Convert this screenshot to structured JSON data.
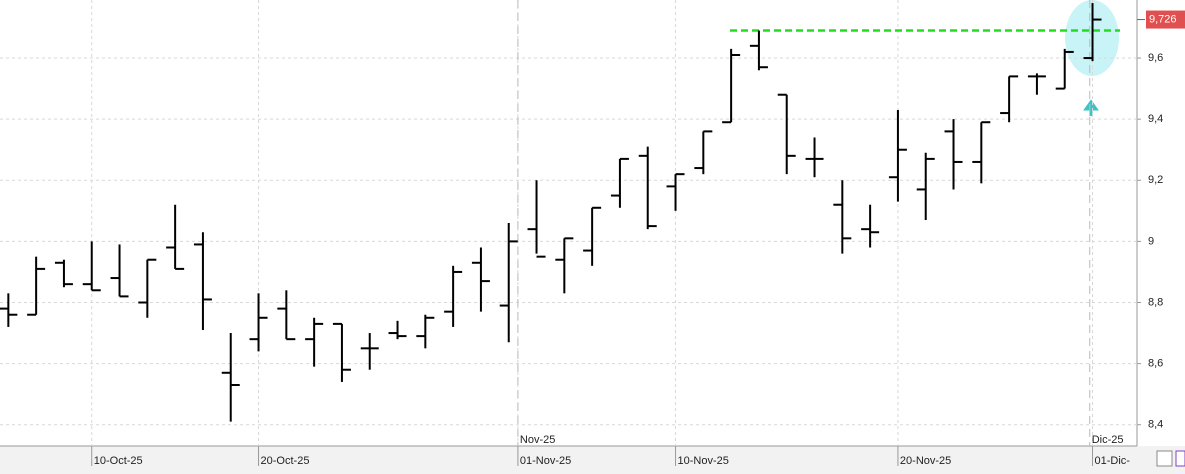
{
  "chart_data": {
    "type": "ohlc",
    "series": [
      {
        "color": "#000000",
        "open": [
          8.78,
          8.76,
          8.93,
          8.86,
          8.88,
          8.8,
          8.98,
          8.99,
          8.57,
          8.68,
          8.78,
          8.68,
          8.73,
          8.65,
          8.7,
          8.69,
          8.77,
          8.93,
          8.79,
          9.04,
          8.94,
          8.97,
          9.15,
          9.28,
          9.18,
          9.24,
          9.39,
          9.64,
          9.48,
          9.27,
          9.12,
          9.04,
          9.21,
          9.17,
          9.36,
          9.26,
          9.42,
          9.54,
          9.5,
          9.6
        ],
        "high": [
          8.83,
          8.95,
          8.94,
          9.0,
          8.99,
          8.94,
          9.12,
          9.03,
          8.7,
          8.83,
          8.84,
          8.75,
          8.73,
          8.7,
          8.74,
          8.76,
          8.92,
          8.98,
          9.06,
          9.2,
          9.01,
          9.11,
          9.27,
          9.31,
          9.22,
          9.36,
          9.63,
          9.69,
          9.48,
          9.34,
          9.2,
          9.12,
          9.43,
          9.29,
          9.4,
          9.39,
          9.54,
          9.55,
          9.63,
          9.78
        ],
        "low": [
          8.72,
          8.76,
          8.85,
          8.84,
          8.82,
          8.75,
          8.91,
          8.71,
          8.41,
          8.64,
          8.68,
          8.59,
          8.54,
          8.58,
          8.68,
          8.65,
          8.72,
          8.77,
          8.67,
          8.96,
          8.83,
          8.92,
          9.11,
          9.04,
          9.1,
          9.22,
          9.39,
          9.56,
          9.22,
          9.21,
          8.96,
          8.98,
          9.13,
          9.07,
          9.17,
          9.19,
          9.39,
          9.48,
          9.5,
          9.59
        ],
        "close": [
          8.76,
          8.91,
          8.86,
          8.84,
          8.82,
          8.94,
          8.91,
          8.81,
          8.53,
          8.75,
          8.68,
          8.73,
          8.58,
          8.65,
          8.69,
          8.75,
          8.9,
          8.87,
          9.0,
          8.95,
          9.01,
          9.11,
          9.27,
          9.05,
          9.22,
          9.36,
          9.61,
          9.57,
          9.28,
          9.27,
          9.01,
          9.03,
          9.3,
          9.27,
          9.26,
          9.39,
          9.54,
          9.54,
          9.62,
          9.726
        ]
      }
    ],
    "xlim": [
      -0.3,
      40.6
    ],
    "xticks": [
      {
        "value": 3,
        "label": "10-Oct-25"
      },
      {
        "value": 9,
        "label": "20-Oct-25"
      },
      {
        "value": 18.33,
        "label": "01-Nov-25"
      },
      {
        "value": 24,
        "label": "10-Nov-25"
      },
      {
        "value": 32,
        "label": "20-Nov-25"
      },
      {
        "value": 39,
        "label": "01-Dic-"
      }
    ],
    "month_ticks": [
      {
        "value": 18.33,
        "label": "Nov-25"
      },
      {
        "value": 38.9,
        "label": "Dic-25"
      }
    ],
    "ylim": [
      8.35,
      9.79
    ],
    "yticks": [
      {
        "value": 8.4,
        "label": "8,4"
      },
      {
        "value": 8.6,
        "label": "8,6"
      },
      {
        "value": 8.8,
        "label": "8,8"
      },
      9,
      {
        "value": 9.2,
        "label": "9,2"
      },
      {
        "value": 9.4,
        "label": "9,4"
      },
      {
        "value": 9.6,
        "label": "9,6"
      }
    ],
    "grid": true,
    "resistance": {
      "value": 9.69,
      "color": "#22dd22"
    },
    "last_price": {
      "value": 9.726,
      "label": "9,726"
    }
  }
}
